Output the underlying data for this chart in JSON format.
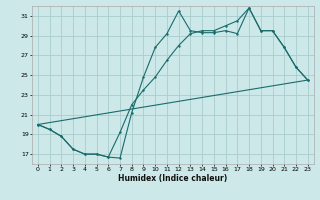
{
  "xlabel": "Humidex (Indice chaleur)",
  "background_color": "#cce8e8",
  "grid_color": "#aacccc",
  "line_color": "#1a6b6b",
  "xlim": [
    -0.5,
    23.5
  ],
  "ylim": [
    16.0,
    32.0
  ],
  "xticks": [
    0,
    1,
    2,
    3,
    4,
    5,
    6,
    7,
    8,
    9,
    10,
    11,
    12,
    13,
    14,
    15,
    16,
    17,
    18,
    19,
    20,
    21,
    22,
    23
  ],
  "yticks": [
    17,
    19,
    21,
    23,
    25,
    27,
    29,
    31
  ],
  "line1_x": [
    0,
    1,
    2,
    3,
    4,
    5,
    6,
    7,
    8,
    9,
    10,
    11,
    12,
    13,
    14,
    15,
    16,
    17,
    18,
    19,
    20,
    21,
    22,
    23
  ],
  "line1_y": [
    20.0,
    19.5,
    18.8,
    17.5,
    17.0,
    17.0,
    16.7,
    16.6,
    21.2,
    24.8,
    27.8,
    29.2,
    31.5,
    29.5,
    29.3,
    29.3,
    29.5,
    29.2,
    31.8,
    29.5,
    29.5,
    27.8,
    25.8,
    24.5
  ],
  "line2_x": [
    0,
    1,
    2,
    3,
    4,
    5,
    6,
    7,
    8,
    9,
    10,
    11,
    12,
    13,
    14,
    15,
    16,
    17,
    18,
    19,
    20,
    21,
    22,
    23
  ],
  "line2_y": [
    20.0,
    19.5,
    18.8,
    17.5,
    17.0,
    17.0,
    16.7,
    19.2,
    22.0,
    23.5,
    24.8,
    26.5,
    28.0,
    29.2,
    29.5,
    29.5,
    30.0,
    30.5,
    31.8,
    29.5,
    29.5,
    27.8,
    25.8,
    24.5
  ],
  "line3_x": [
    0,
    23
  ],
  "line3_y": [
    20.0,
    24.5
  ]
}
